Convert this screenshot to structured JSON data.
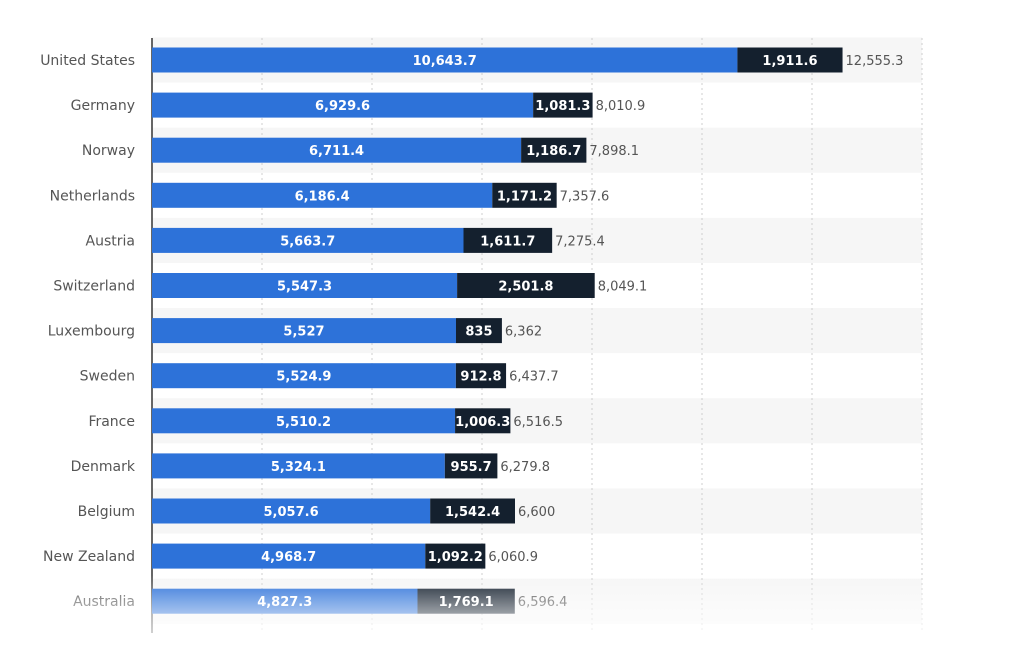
{
  "chart_data": {
    "type": "bar",
    "orientation": "horizontal",
    "stacked": true,
    "categories": [
      "United States",
      "Germany",
      "Norway",
      "Netherlands",
      "Austria",
      "Switzerland",
      "Luxembourg",
      "Sweden",
      "France",
      "Denmark",
      "Belgium",
      "New Zealand",
      "Australia"
    ],
    "series": [
      {
        "values": [
          10643.7,
          6929.6,
          6711.4,
          6186.4,
          5663.7,
          5547.3,
          5527,
          5524.9,
          5510.2,
          5324.1,
          5057.6,
          4968.7,
          4827.3
        ],
        "labels": [
          "10,643.7",
          "6,929.6",
          "6,711.4",
          "6,186.4",
          "5,663.7",
          "5,547.3",
          "5,527",
          "5,524.9",
          "5,510.2",
          "5,324.1",
          "5,057.6",
          "4,968.7",
          "4,827.3"
        ],
        "color": "#2d72d9"
      },
      {
        "values": [
          1911.6,
          1081.3,
          1186.7,
          1171.2,
          1611.7,
          2501.8,
          835,
          912.8,
          1006.3,
          955.7,
          1542.4,
          1092.2,
          1769.1
        ],
        "labels": [
          "1,911.6",
          "1,081.3",
          "1,186.7",
          "1,171.2",
          "1,611.7",
          "2,501.8",
          "835",
          "912.8",
          "1,006.3",
          "955.7",
          "1,542.4",
          "1,092.2",
          "1,769.1"
        ],
        "color": "#14202e"
      }
    ],
    "totals": [
      12555.3,
      8010.9,
      7898.1,
      7357.6,
      7275.4,
      8049.1,
      6362,
      6437.7,
      6516.5,
      6279.8,
      6600,
      6060.9,
      6596.4
    ],
    "total_labels": [
      "12,555.3",
      "8,010.9",
      "7,898.1",
      "7,357.6",
      "7,275.4",
      "8,049.1",
      "6,362",
      "6,437.7",
      "6,516.5",
      "6,279.8",
      "6,600",
      "6,060.9",
      "6,596.4"
    ],
    "xlim": [
      0,
      14000
    ],
    "grid": true,
    "legend": "none"
  }
}
